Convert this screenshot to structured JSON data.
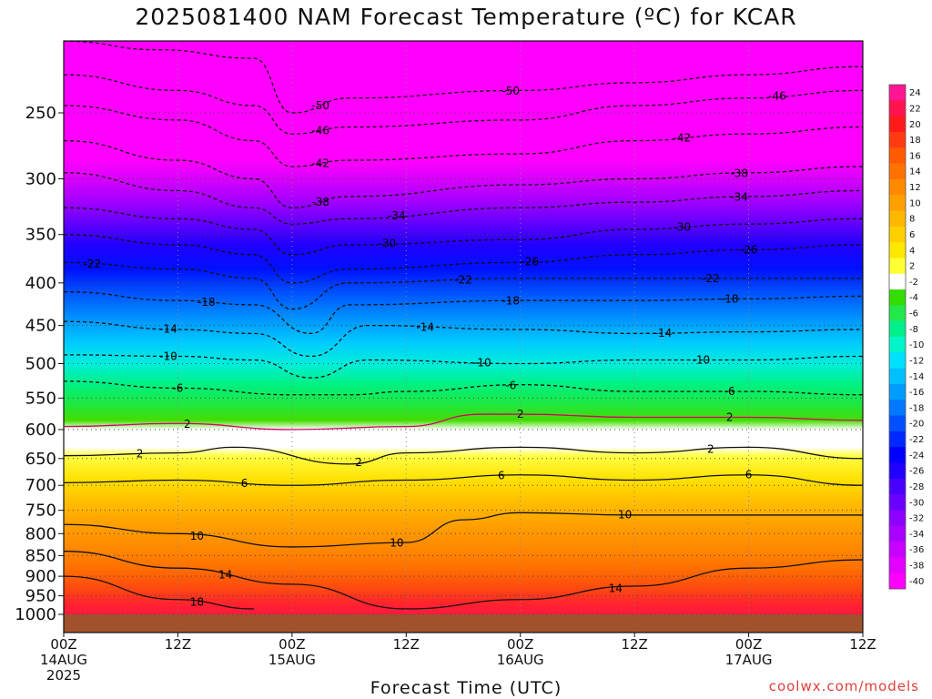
{
  "title": "2025081400 NAM Forecast Temperature (ºC) for KCAR",
  "xlabel": "Forecast Time (UTC)",
  "credit": "coolwx.com/models",
  "chart_data": {
    "type": "heatmap",
    "title": "2025081400 NAM Forecast Temperature (ºC) for KCAR",
    "xlabel": "Forecast Time (UTC)",
    "ylabel": "",
    "x_ticks": [
      {
        "hour": 0,
        "line1": "00Z",
        "line2": "14AUG",
        "line3": "2025"
      },
      {
        "hour": 12,
        "line1": "12Z",
        "line2": "",
        "line3": ""
      },
      {
        "hour": 24,
        "line1": "00Z",
        "line2": "15AUG",
        "line3": ""
      },
      {
        "hour": 36,
        "line1": "12Z",
        "line2": "",
        "line3": ""
      },
      {
        "hour": 48,
        "line1": "00Z",
        "line2": "16AUG",
        "line3": ""
      },
      {
        "hour": 60,
        "line1": "12Z",
        "line2": "",
        "line3": ""
      },
      {
        "hour": 72,
        "line1": "00Z",
        "line2": "17AUG",
        "line3": ""
      },
      {
        "hour": 84,
        "line1": "12Z",
        "line2": "",
        "line3": ""
      }
    ],
    "xlim": [
      0,
      84
    ],
    "y_ticks": [
      250,
      300,
      350,
      400,
      450,
      500,
      550,
      600,
      650,
      700,
      750,
      800,
      850,
      900,
      950,
      1000
    ],
    "ylim": [
      1000,
      200
    ],
    "y_scale": "log",
    "colorbar": {
      "labels": [
        "24",
        "22",
        "20",
        "18",
        "16",
        "14",
        "12",
        "10",
        "8",
        "6",
        "4",
        "2",
        "-2",
        "-4",
        "-6",
        "-8",
        "-10",
        "-12",
        "-14",
        "-16",
        "-18",
        "-20",
        "-22",
        "-24",
        "-26",
        "-28",
        "-30",
        "-32",
        "-34",
        "-36",
        "-38",
        "-40"
      ],
      "colors": [
        "#ff1493",
        "#ff1450",
        "#ff1a1a",
        "#ff3a10",
        "#ff5a00",
        "#ff7200",
        "#ff8a00",
        "#ffa000",
        "#ffb800",
        "#ffd000",
        "#ffe800",
        "#ffff33",
        "#ffffff",
        "#33dd00",
        "#22e84a",
        "#00f08c",
        "#00f5c8",
        "#00e0ff",
        "#00c0ff",
        "#009cff",
        "#0078ff",
        "#0050ff",
        "#0028ff",
        "#0000ff",
        "#2000ff",
        "#4800ff",
        "#6a00ff",
        "#8c00ff",
        "#aa00ff",
        "#c800ff",
        "#e400ff",
        "#ff00ff"
      ]
    },
    "isotherms": [
      {
        "value": -50,
        "p": [
          [
            0,
            205
          ],
          [
            10,
            210
          ],
          [
            20,
            215
          ],
          [
            24,
            250
          ],
          [
            30,
            240
          ],
          [
            48,
            235
          ],
          [
            60,
            230
          ],
          [
            72,
            225
          ],
          [
            84,
            220
          ]
        ],
        "labels": [
          {
            "hour": 27,
            "text": "-50"
          },
          {
            "hour": 47,
            "text": "-50"
          }
        ]
      },
      {
        "value": -46,
        "p": [
          [
            0,
            225
          ],
          [
            12,
            235
          ],
          [
            20,
            245
          ],
          [
            24,
            265
          ],
          [
            30,
            260
          ],
          [
            48,
            255
          ],
          [
            60,
            245
          ],
          [
            72,
            240
          ],
          [
            84,
            235
          ]
        ],
        "labels": [
          {
            "hour": 27,
            "text": "-46"
          },
          {
            "hour": 75,
            "text": "-46"
          }
        ]
      },
      {
        "value": -42,
        "p": [
          [
            0,
            245
          ],
          [
            12,
            255
          ],
          [
            20,
            270
          ],
          [
            24,
            290
          ],
          [
            30,
            285
          ],
          [
            48,
            280
          ],
          [
            60,
            270
          ],
          [
            72,
            265
          ],
          [
            84,
            260
          ]
        ],
        "labels": [
          {
            "hour": 27,
            "text": "-42"
          },
          {
            "hour": 65,
            "text": "-42"
          }
        ]
      },
      {
        "value": -38,
        "p": [
          [
            0,
            270
          ],
          [
            12,
            285
          ],
          [
            20,
            300
          ],
          [
            24,
            325
          ],
          [
            30,
            315
          ],
          [
            48,
            305
          ],
          [
            60,
            300
          ],
          [
            72,
            295
          ],
          [
            84,
            290
          ]
        ],
        "labels": [
          {
            "hour": 27,
            "text": "-38"
          },
          {
            "hour": 71,
            "text": "-38"
          }
        ]
      },
      {
        "value": -34,
        "p": [
          [
            0,
            295
          ],
          [
            12,
            310
          ],
          [
            20,
            325
          ],
          [
            24,
            340
          ],
          [
            30,
            335
          ],
          [
            48,
            325
          ],
          [
            60,
            320
          ],
          [
            72,
            315
          ],
          [
            84,
            310
          ]
        ],
        "labels": [
          {
            "hour": 35,
            "text": "-34"
          },
          {
            "hour": 71,
            "text": "-34"
          }
        ]
      },
      {
        "value": -30,
        "p": [
          [
            0,
            325
          ],
          [
            12,
            335
          ],
          [
            20,
            345
          ],
          [
            24,
            370
          ],
          [
            30,
            360
          ],
          [
            48,
            355
          ],
          [
            60,
            345
          ],
          [
            72,
            340
          ],
          [
            84,
            335
          ]
        ],
        "labels": [
          {
            "hour": 34,
            "text": "-30"
          },
          {
            "hour": 65,
            "text": "-30"
          }
        ]
      },
      {
        "value": -26,
        "p": [
          [
            0,
            350
          ],
          [
            12,
            360
          ],
          [
            20,
            370
          ],
          [
            24,
            400
          ],
          [
            30,
            385
          ],
          [
            48,
            378
          ],
          [
            60,
            370
          ],
          [
            72,
            365
          ],
          [
            84,
            360
          ]
        ],
        "labels": [
          {
            "hour": 49,
            "text": "-26"
          },
          {
            "hour": 72,
            "text": "-26"
          }
        ]
      },
      {
        "value": -22,
        "p": [
          [
            0,
            378
          ],
          [
            12,
            385
          ],
          [
            20,
            395
          ],
          [
            24,
            430
          ],
          [
            30,
            400
          ],
          [
            48,
            395
          ],
          [
            60,
            395
          ],
          [
            72,
            395
          ],
          [
            84,
            395
          ]
        ],
        "labels": [
          {
            "hour": 3,
            "text": "-22"
          },
          {
            "hour": 42,
            "text": "-22"
          },
          {
            "hour": 68,
            "text": "-22"
          }
        ]
      },
      {
        "value": -18,
        "p": [
          [
            0,
            410
          ],
          [
            12,
            420
          ],
          [
            20,
            425
          ],
          [
            26,
            460
          ],
          [
            30,
            425
          ],
          [
            48,
            420
          ],
          [
            60,
            420
          ],
          [
            72,
            418
          ],
          [
            84,
            415
          ]
        ],
        "labels": [
          {
            "hour": 15,
            "text": "-18"
          },
          {
            "hour": 47,
            "text": "-18"
          },
          {
            "hour": 70,
            "text": "-18"
          }
        ]
      },
      {
        "value": -14,
        "p": [
          [
            0,
            445
          ],
          [
            12,
            455
          ],
          [
            20,
            460
          ],
          [
            26,
            490
          ],
          [
            32,
            450
          ],
          [
            48,
            455
          ],
          [
            60,
            460
          ],
          [
            72,
            458
          ],
          [
            84,
            455
          ]
        ],
        "labels": [
          {
            "hour": 11,
            "text": "-14"
          },
          {
            "hour": 38,
            "text": "-14"
          },
          {
            "hour": 63,
            "text": "-14"
          }
        ]
      },
      {
        "value": -10,
        "p": [
          [
            0,
            488
          ],
          [
            12,
            490
          ],
          [
            20,
            495
          ],
          [
            26,
            520
          ],
          [
            32,
            495
          ],
          [
            48,
            500
          ],
          [
            60,
            495
          ],
          [
            72,
            495
          ],
          [
            84,
            490
          ]
        ],
        "labels": [
          {
            "hour": 11,
            "text": "-10"
          },
          {
            "hour": 44,
            "text": "-10"
          },
          {
            "hour": 67,
            "text": "-10"
          }
        ]
      },
      {
        "value": -6,
        "p": [
          [
            0,
            525
          ],
          [
            12,
            535
          ],
          [
            24,
            545
          ],
          [
            30,
            545
          ],
          [
            36,
            540
          ],
          [
            48,
            530
          ],
          [
            60,
            540
          ],
          [
            72,
            540
          ],
          [
            84,
            545
          ]
        ],
        "labels": [
          {
            "hour": 12,
            "text": "-6"
          },
          {
            "hour": 47,
            "text": "-6"
          },
          {
            "hour": 70,
            "text": "-6"
          }
        ]
      },
      {
        "value": 2,
        "p": [
          [
            0,
            595
          ],
          [
            12,
            590
          ],
          [
            24,
            600
          ],
          [
            36,
            595
          ],
          [
            44,
            575
          ],
          [
            48,
            575
          ],
          [
            60,
            580
          ],
          [
            72,
            580
          ],
          [
            84,
            585
          ]
        ],
        "labels": [
          {
            "hour": 13,
            "text": "2"
          },
          {
            "hour": 48,
            "text": "2"
          },
          {
            "hour": 70,
            "text": "2"
          }
        ],
        "solid": true
      },
      {
        "value": 2,
        "p": [
          [
            0,
            645
          ],
          [
            12,
            640
          ],
          [
            18,
            630
          ],
          [
            30,
            660
          ],
          [
            36,
            640
          ],
          [
            48,
            630
          ],
          [
            60,
            640
          ],
          [
            72,
            630
          ],
          [
            84,
            650
          ]
        ],
        "labels": [
          {
            "hour": 8,
            "text": "2"
          },
          {
            "hour": 31,
            "text": "2"
          },
          {
            "hour": 68,
            "text": "2"
          }
        ],
        "solid": true
      },
      {
        "value": 6,
        "p": [
          [
            0,
            695
          ],
          [
            12,
            690
          ],
          [
            24,
            700
          ],
          [
            36,
            690
          ],
          [
            48,
            680
          ],
          [
            60,
            690
          ],
          [
            72,
            680
          ],
          [
            84,
            700
          ]
        ],
        "labels": [
          {
            "hour": 19,
            "text": "6"
          },
          {
            "hour": 46,
            "text": "6"
          },
          {
            "hour": 72,
            "text": "6"
          }
        ],
        "solid": true
      },
      {
        "value": 10,
        "p": [
          [
            0,
            780
          ],
          [
            12,
            800
          ],
          [
            24,
            830
          ],
          [
            36,
            820
          ],
          [
            42,
            770
          ],
          [
            48,
            755
          ],
          [
            60,
            760
          ],
          [
            72,
            760
          ],
          [
            84,
            760
          ]
        ],
        "labels": [
          {
            "hour": 14,
            "text": "10"
          },
          {
            "hour": 35,
            "text": "10"
          },
          {
            "hour": 59,
            "text": "10"
          }
        ],
        "solid": true
      },
      {
        "value": 14,
        "p": [
          [
            0,
            840
          ],
          [
            12,
            880
          ],
          [
            24,
            920
          ],
          [
            36,
            985
          ],
          [
            48,
            960
          ],
          [
            60,
            925
          ],
          [
            72,
            880
          ],
          [
            84,
            860
          ]
        ],
        "labels": [
          {
            "hour": 17,
            "text": "14"
          },
          {
            "hour": 58,
            "text": "14"
          }
        ],
        "solid": true
      },
      {
        "value": 18,
        "p": [
          [
            0,
            900
          ],
          [
            12,
            960
          ],
          [
            20,
            985
          ]
        ],
        "labels": [
          {
            "hour": 14,
            "text": "18"
          }
        ],
        "solid": true
      }
    ]
  }
}
